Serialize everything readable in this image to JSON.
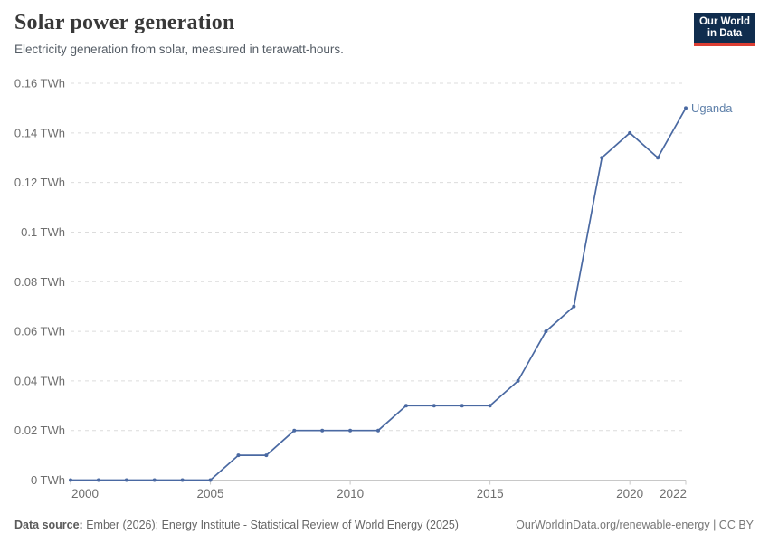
{
  "header": {
    "title": "Solar power generation",
    "subtitle": "Electricity generation from solar, measured in terawatt-hours."
  },
  "logo": {
    "line1": "Our World",
    "line2": "in Data",
    "bg_color": "#102d4e",
    "accent_color": "#dc3e33"
  },
  "chart_data": {
    "type": "line",
    "title": "Solar power generation",
    "xlabel": "",
    "ylabel": "",
    "unit": "TWh",
    "xlim": [
      2000,
      2022
    ],
    "ylim": [
      0,
      0.16
    ],
    "grid": "horizontal-dashed",
    "legend_position": "end-of-line-label",
    "x_ticks": [
      {
        "value": 2000,
        "label": "2000"
      },
      {
        "value": 2005,
        "label": "2005"
      },
      {
        "value": 2010,
        "label": "2010"
      },
      {
        "value": 2015,
        "label": "2015"
      },
      {
        "value": 2020,
        "label": "2020"
      },
      {
        "value": 2022,
        "label": "2022"
      }
    ],
    "y_ticks": [
      {
        "value": 0,
        "label": "0 TWh"
      },
      {
        "value": 0.02,
        "label": "0.02 TWh"
      },
      {
        "value": 0.04,
        "label": "0.04 TWh"
      },
      {
        "value": 0.06,
        "label": "0.06 TWh"
      },
      {
        "value": 0.08,
        "label": "0.08 TWh"
      },
      {
        "value": 0.1,
        "label": "0.1 TWh"
      },
      {
        "value": 0.12,
        "label": "0.12 TWh"
      },
      {
        "value": 0.14,
        "label": "0.14 TWh"
      },
      {
        "value": 0.16,
        "label": "0.16 TWh"
      }
    ],
    "series": [
      {
        "name": "Uganda",
        "color": "#4a69a2",
        "label_color": "#5d7fa9",
        "x": [
          2000,
          2001,
          2002,
          2003,
          2004,
          2005,
          2006,
          2007,
          2008,
          2009,
          2010,
          2011,
          2012,
          2013,
          2014,
          2015,
          2016,
          2017,
          2018,
          2019,
          2020,
          2021,
          2022
        ],
        "values": [
          0,
          0,
          0,
          0,
          0,
          0,
          0.01,
          0.01,
          0.02,
          0.02,
          0.02,
          0.02,
          0.03,
          0.03,
          0.03,
          0.03,
          0.04,
          0.06,
          0.07,
          0.13,
          0.14,
          0.13,
          0.15
        ]
      }
    ],
    "colors": {
      "gridline": "#dcdcdc",
      "axis": "#c8c8c8",
      "tick_label": "#6e6e6e"
    }
  },
  "footer": {
    "source_label": "Data source:",
    "source_text": "Ember (2026); Energy Institute - Statistical Review of World Energy (2025)",
    "right_text": "OurWorldinData.org/renewable-energy | CC BY"
  }
}
